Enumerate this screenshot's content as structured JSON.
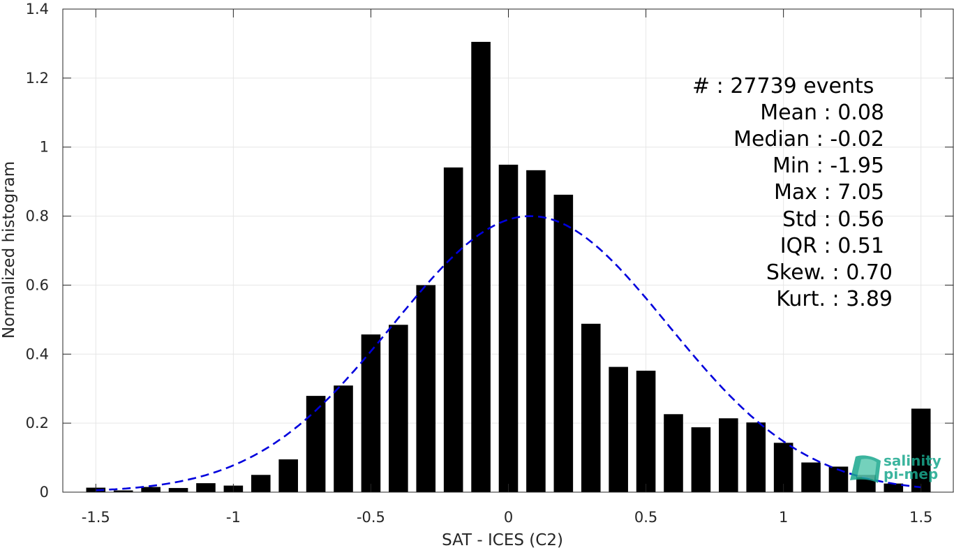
{
  "chart_data": {
    "type": "bar",
    "xlabel": "SAT - ICES (C2)",
    "ylabel": "Normalized histogram",
    "xlim": [
      -1.62,
      1.62
    ],
    "ylim": [
      0,
      1.4
    ],
    "xticks": [
      -1.5,
      -1,
      -0.5,
      0,
      0.5,
      1,
      1.5
    ],
    "xtick_labels": [
      "-1.5",
      "-1",
      "-0.5",
      "0",
      "0.5",
      "1",
      "1.5"
    ],
    "yticks": [
      0,
      0.2,
      0.4,
      0.6,
      0.8,
      1,
      1.2,
      1.4
    ],
    "ytick_labels": [
      "0",
      "0.2",
      "0.4",
      "0.6",
      "0.8",
      "1",
      "1.2",
      "1.4"
    ],
    "grid": true,
    "bar_width": 0.07,
    "bar_color": "#000000",
    "bins": {
      "x": [
        -1.5,
        -1.4,
        -1.3,
        -1.2,
        -1.1,
        -1.0,
        -0.9,
        -0.8,
        -0.7,
        -0.6,
        -0.5,
        -0.4,
        -0.3,
        -0.2,
        -0.1,
        0.0,
        0.1,
        0.2,
        0.3,
        0.4,
        0.5,
        0.6,
        0.7,
        0.8,
        0.9,
        1.0,
        1.1,
        1.2,
        1.3,
        1.4,
        1.5
      ],
      "values": [
        0.013,
        0.005,
        0.015,
        0.012,
        0.026,
        0.019,
        0.05,
        0.095,
        0.279,
        0.309,
        0.457,
        0.485,
        0.6,
        0.941,
        1.305,
        0.949,
        0.933,
        0.862,
        0.488,
        0.363,
        0.352,
        0.226,
        0.188,
        0.214,
        0.202,
        0.143,
        0.086,
        0.074,
        0.05,
        0.025,
        0.242
      ]
    },
    "fit_curve": {
      "style": "dashed",
      "color": "#0000dd",
      "mean": 0.08,
      "std": 0.5,
      "peak": 0.8,
      "x_range": [
        -1.5,
        1.5
      ]
    },
    "annotations": [
      {
        "label": "#  : 27739 events"
      },
      {
        "label": "Mean : 0.08"
      },
      {
        "label": "Median : -0.02"
      },
      {
        "label": "Min : -1.95"
      },
      {
        "label": "Max : 7.05"
      },
      {
        "label": "Std : 0.56"
      },
      {
        "label": "IQR : 0.51"
      },
      {
        "label": "Skew. : 0.70"
      },
      {
        "label": "Kurt. : 3.89"
      }
    ]
  },
  "logo": {
    "line1": "salinity",
    "line2": "pi-mep",
    "color": "#1aa88e"
  }
}
